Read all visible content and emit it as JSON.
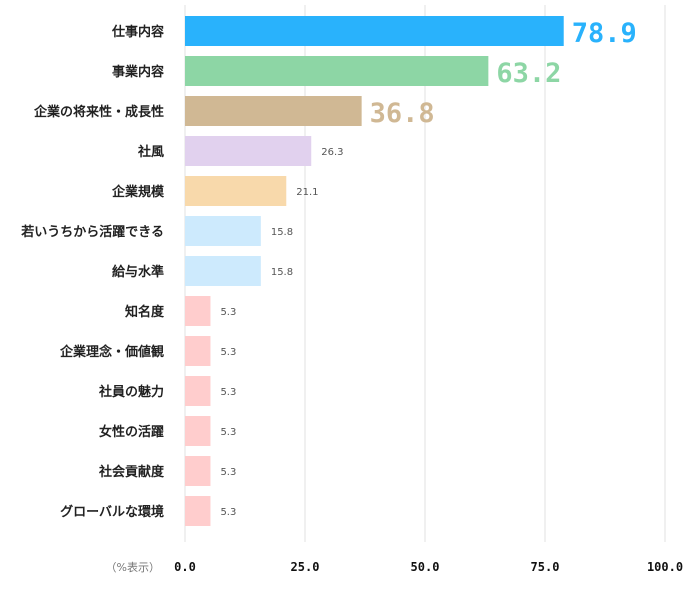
{
  "chart_data": {
    "type": "bar",
    "orientation": "horizontal",
    "categories": [
      "仕事内容",
      "事業内容",
      "企業の将来性・成長性",
      "社風",
      "企業規模",
      "若いうちから活躍できる",
      "給与水準",
      "知名度",
      "企業理念・価値観",
      "社員の魅力",
      "女性の活躍",
      "社会貢献度",
      "グローバルな環境"
    ],
    "values": [
      78.9,
      63.2,
      36.8,
      26.3,
      21.1,
      15.8,
      15.8,
      5.3,
      5.3,
      5.3,
      5.3,
      5.3,
      5.3
    ],
    "value_labels": [
      "78.9",
      "63.2",
      "36.8",
      "26.3",
      "21.1",
      "15.8",
      "15.8",
      "5.3",
      "5.3",
      "5.3",
      "5.3",
      "5.3",
      "5.3"
    ],
    "colors": [
      "#29b2fc",
      "#8dd6a5",
      "#d0b894",
      "#e1d1ee",
      "#f8d9ab",
      "#cdeafd",
      "#cdeafd",
      "#ffcdcd",
      "#ffcdcd",
      "#ffcdcd",
      "#ffcdcd",
      "#ffcdcd",
      "#ffcdcd"
    ],
    "xlim": [
      0,
      100
    ],
    "x_ticks": [
      "0.0",
      "25.0",
      "50.0",
      "75.0",
      "100.0"
    ],
    "x_unit_label": "（%表示）",
    "grid": true,
    "highlighted_top": 3
  }
}
